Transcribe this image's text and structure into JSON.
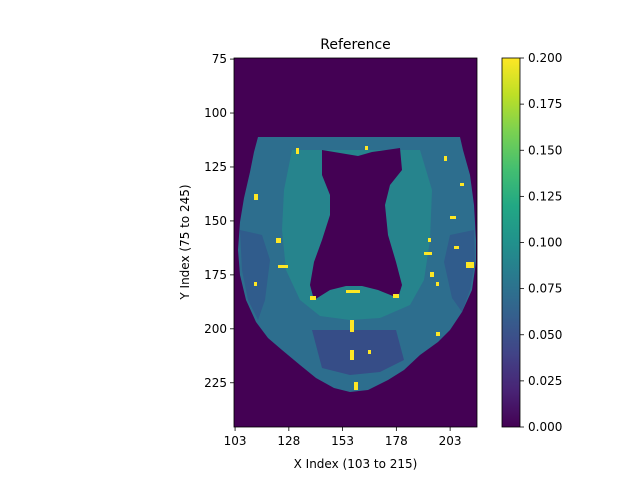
{
  "chart_data": {
    "type": "heatmap",
    "title": "Reference",
    "xlabel": "X Index (103 to 215)",
    "ylabel": "Y Index (75 to 245)",
    "x_range": [
      103,
      215
    ],
    "y_range": [
      75,
      245
    ],
    "x_ticks": [
      103,
      128,
      153,
      178,
      203
    ],
    "y_ticks": [
      75,
      100,
      125,
      150,
      175,
      200,
      225
    ],
    "y_inverted": true,
    "colormap": "viridis",
    "colorbar": {
      "range": [
        0.0,
        0.2
      ],
      "ticks": [
        "0.000",
        "0.025",
        "0.050",
        "0.075",
        "0.100",
        "0.125",
        "0.150",
        "0.175",
        "0.200"
      ]
    },
    "background_value": 0.0,
    "brain_mask_value": 0.08,
    "ventricle_value": 0.0,
    "grid": false
  }
}
